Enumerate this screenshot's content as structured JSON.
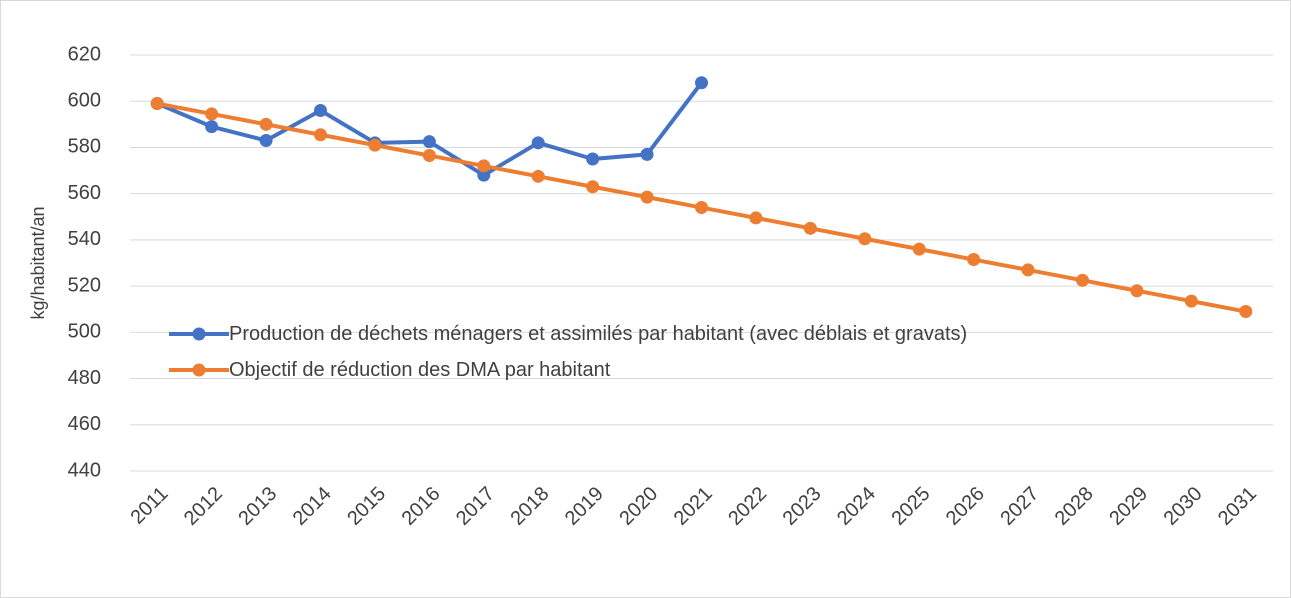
{
  "chart_data": {
    "type": "line",
    "y_label": "kg/habitant/an",
    "categories": [
      "2011",
      "2012",
      "2013",
      "2014",
      "2015",
      "2016",
      "2017",
      "2018",
      "2019",
      "2020",
      "2021",
      "2022",
      "2023",
      "2024",
      "2025",
      "2026",
      "2027",
      "2028",
      "2029",
      "2030",
      "2031"
    ],
    "series": [
      {
        "name": "Production de déchets ménagers et assimilés par habitant (avec déblais et gravats)",
        "color": "#4472c4",
        "values": [
          599,
          589,
          583,
          596,
          582,
          582.5,
          568,
          582,
          575,
          577,
          608,
          null,
          null,
          null,
          null,
          null,
          null,
          null,
          null,
          null,
          null
        ]
      },
      {
        "name": "Objectif de réduction des DMA par habitant",
        "color": "#ed7d31",
        "values": [
          599,
          594.5,
          590,
          585.5,
          581,
          576.5,
          572,
          567.5,
          563,
          558.5,
          554,
          549.5,
          545,
          540.5,
          536,
          531.5,
          527,
          522.5,
          518,
          513.5,
          509
        ]
      }
    ],
    "ylim": [
      440,
      620
    ],
    "yticks": [
      440,
      460,
      480,
      500,
      520,
      540,
      560,
      580,
      600,
      620
    ],
    "grid": true,
    "legend": "inside-left"
  }
}
